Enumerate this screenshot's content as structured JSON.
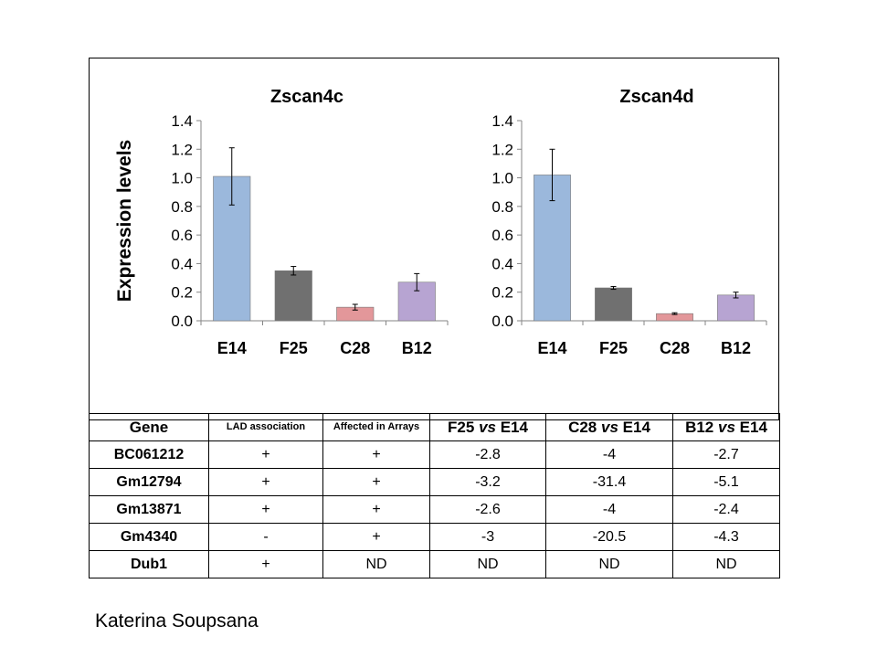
{
  "chart_data": [
    {
      "type": "bar",
      "title": "Zscan4c",
      "ylabel": "Expression levels",
      "xlabel": "",
      "categories": [
        "E14",
        "F25",
        "C28",
        "B12"
      ],
      "values": [
        1.01,
        0.35,
        0.095,
        0.27
      ],
      "errors": [
        0.2,
        0.03,
        0.02,
        0.06
      ],
      "ylim": [
        0,
        1.4
      ],
      "yticks": [
        "0.0",
        "0.2",
        "0.4",
        "0.6",
        "0.8",
        "1.0",
        "1.2",
        "1.4"
      ],
      "colors": [
        "#9bb8dc",
        "#707070",
        "#e3979a",
        "#b7a4d2"
      ],
      "grid": false,
      "legend": "none"
    },
    {
      "type": "bar",
      "title": "Zscan4d",
      "ylabel": "",
      "xlabel": "",
      "categories": [
        "E14",
        "F25",
        "C28",
        "B12"
      ],
      "values": [
        1.02,
        0.23,
        0.05,
        0.18
      ],
      "errors": [
        0.18,
        0.01,
        0.006,
        0.02
      ],
      "ylim": [
        0,
        1.4
      ],
      "yticks": [
        "0.0",
        "0.2",
        "0.4",
        "0.6",
        "0.8",
        "1.0",
        "1.2",
        "1.4"
      ],
      "colors": [
        "#9bb8dc",
        "#707070",
        "#e3979a",
        "#b7a4d2"
      ],
      "grid": false,
      "legend": "none"
    }
  ],
  "table": {
    "headers": [
      {
        "text": "Gene",
        "style": "big"
      },
      {
        "text": "LAD association",
        "style": "small"
      },
      {
        "text": "Affected in Arrays",
        "style": "small"
      },
      {
        "text": "F25 vs E14",
        "style": "big"
      },
      {
        "text": "C28 vs E14",
        "style": "big"
      },
      {
        "text": "B12 vs E14",
        "style": "big"
      }
    ],
    "rows": [
      [
        "BC061212",
        "+",
        "+",
        "-2.8",
        "-4",
        "-2.7"
      ],
      [
        "Gm12794",
        "+",
        "+",
        "-3.2",
        "-31.4",
        "-5.1"
      ],
      [
        "Gm13871",
        "+",
        "+",
        "-2.6",
        "-4",
        "-2.4"
      ],
      [
        "Gm4340",
        "-",
        "+",
        "-3",
        "-20.5",
        "-4.3"
      ],
      [
        "Dub1",
        "+",
        "ND",
        "ND",
        "ND",
        "ND"
      ]
    ]
  },
  "author": "Katerina Soupsana"
}
